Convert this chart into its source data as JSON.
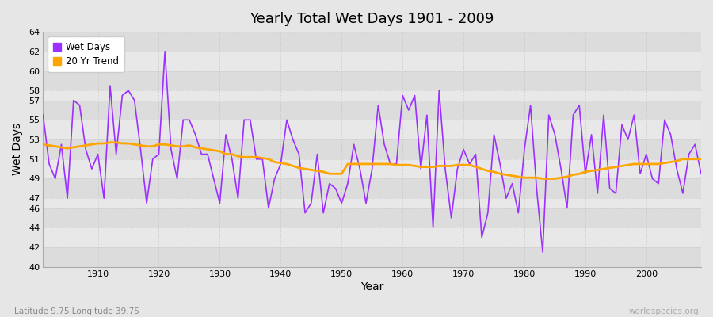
{
  "title": "Yearly Total Wet Days 1901 - 2009",
  "xlabel": "Year",
  "ylabel": "Wet Days",
  "lat_lon_label": "Latitude 9.75 Longitude 39.75",
  "source_label": "worldspecies.org",
  "line1_label": "Wet Days",
  "line2_label": "20 Yr Trend",
  "line1_color": "#9B30FF",
  "line2_color": "#FFA500",
  "fig_bg": "#E6E6E6",
  "band_even": "#DCDCDC",
  "band_odd": "#E8E8E8",
  "ylim_low": 40,
  "ylim_high": 64,
  "xlim_low": 1901,
  "xlim_high": 2009,
  "yticks": [
    40,
    42,
    44,
    46,
    47,
    49,
    51,
    53,
    55,
    57,
    58,
    60,
    62,
    64
  ],
  "xtick_start": 1910,
  "xtick_step": 10,
  "years": [
    1901,
    1902,
    1903,
    1904,
    1905,
    1906,
    1907,
    1908,
    1909,
    1910,
    1911,
    1912,
    1913,
    1914,
    1915,
    1916,
    1917,
    1918,
    1919,
    1920,
    1921,
    1922,
    1923,
    1924,
    1925,
    1926,
    1927,
    1928,
    1929,
    1930,
    1931,
    1932,
    1933,
    1934,
    1935,
    1936,
    1937,
    1938,
    1939,
    1940,
    1941,
    1942,
    1943,
    1944,
    1945,
    1946,
    1947,
    1948,
    1949,
    1950,
    1951,
    1952,
    1953,
    1954,
    1955,
    1956,
    1957,
    1958,
    1959,
    1960,
    1961,
    1962,
    1963,
    1964,
    1965,
    1966,
    1967,
    1968,
    1969,
    1970,
    1971,
    1972,
    1973,
    1974,
    1975,
    1976,
    1977,
    1978,
    1979,
    1980,
    1981,
    1982,
    1983,
    1984,
    1985,
    1986,
    1987,
    1988,
    1989,
    1990,
    1991,
    1992,
    1993,
    1994,
    1995,
    1996,
    1997,
    1998,
    1999,
    2000,
    2001,
    2002,
    2003,
    2004,
    2005,
    2006,
    2007,
    2008,
    2009
  ],
  "wet_days": [
    55.5,
    50.5,
    49.0,
    52.5,
    47.0,
    57.0,
    56.5,
    52.0,
    50.0,
    51.5,
    47.0,
    58.5,
    51.5,
    57.5,
    58.0,
    57.0,
    52.0,
    46.5,
    51.0,
    51.5,
    62.0,
    52.0,
    49.0,
    55.0,
    55.0,
    53.5,
    51.5,
    51.5,
    49.0,
    46.5,
    53.5,
    51.0,
    47.0,
    55.0,
    55.0,
    51.0,
    51.0,
    46.0,
    49.0,
    50.5,
    55.0,
    53.0,
    51.5,
    45.5,
    46.5,
    51.5,
    45.5,
    48.5,
    48.0,
    46.5,
    48.5,
    52.5,
    50.0,
    46.5,
    50.0,
    56.5,
    52.5,
    50.5,
    50.5,
    57.5,
    56.0,
    57.5,
    50.0,
    55.5,
    44.0,
    58.0,
    50.0,
    45.0,
    50.0,
    52.0,
    50.5,
    51.5,
    43.0,
    45.5,
    53.5,
    50.5,
    47.0,
    48.5,
    45.5,
    52.0,
    56.5,
    48.0,
    41.5,
    55.5,
    53.5,
    50.0,
    46.0,
    55.5,
    56.5,
    49.5,
    53.5,
    47.5,
    55.5,
    48.0,
    47.5,
    54.5,
    53.0,
    55.5,
    49.5,
    51.5,
    49.0,
    48.5,
    55.0,
    53.5,
    50.0,
    47.5,
    51.5,
    52.5,
    49.5
  ],
  "trend": [
    52.5,
    52.4,
    52.3,
    52.2,
    52.1,
    52.2,
    52.3,
    52.4,
    52.5,
    52.6,
    52.6,
    52.7,
    52.7,
    52.6,
    52.6,
    52.5,
    52.4,
    52.3,
    52.3,
    52.5,
    52.5,
    52.4,
    52.3,
    52.3,
    52.4,
    52.2,
    52.1,
    52.0,
    51.9,
    51.8,
    51.5,
    51.5,
    51.3,
    51.2,
    51.2,
    51.2,
    51.1,
    51.0,
    50.7,
    50.6,
    50.5,
    50.3,
    50.1,
    50.0,
    49.9,
    49.8,
    49.7,
    49.5,
    49.5,
    49.5,
    50.5,
    50.5,
    50.5,
    50.5,
    50.5,
    50.5,
    50.5,
    50.5,
    50.4,
    50.4,
    50.4,
    50.3,
    50.2,
    50.2,
    50.2,
    50.3,
    50.3,
    50.3,
    50.4,
    50.4,
    50.4,
    50.2,
    50.0,
    49.8,
    49.7,
    49.5,
    49.4,
    49.3,
    49.2,
    49.1,
    49.1,
    49.1,
    49.0,
    49.0,
    49.0,
    49.1,
    49.2,
    49.4,
    49.5,
    49.7,
    49.8,
    49.9,
    50.0,
    50.1,
    50.2,
    50.3,
    50.4,
    50.5,
    50.5,
    50.5,
    50.5,
    50.5,
    50.6,
    50.7,
    50.8,
    51.0,
    51.0,
    51.0,
    51.0
  ]
}
